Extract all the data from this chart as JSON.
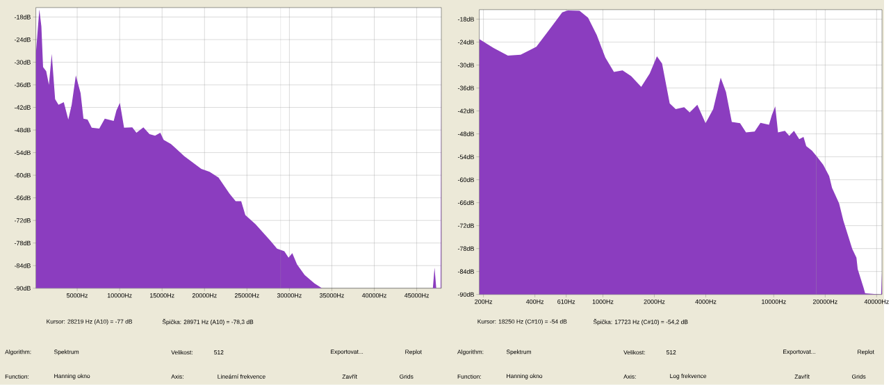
{
  "chart_data": [
    {
      "type": "area",
      "color": "#8b3dbf",
      "grid": true,
      "x": [
        130,
        130,
        540,
        780,
        980,
        1350,
        1670,
        2000,
        2400,
        2800,
        3420,
        3950,
        4350,
        4840,
        5400,
        5740,
        6220,
        6710,
        7600,
        8250,
        9300,
        9620,
        10030,
        10520,
        11490,
        11980,
        12800,
        13520,
        14170,
        14790,
        15190,
        16050,
        17020,
        17590,
        19620,
        20600,
        21650,
        22950,
        23670,
        24320,
        24810,
        26000,
        27730,
        28540,
        29400,
        29900,
        30340,
        30900,
        31800,
        32950,
        33840,
        46900,
        47100,
        47300,
        47800,
        47870,
        47870
      ],
      "values": [
        -90,
        -27.8,
        -16,
        -20.5,
        -31.3,
        -32.4,
        -36,
        -27.8,
        -39.8,
        -41.3,
        -40.6,
        -45.2,
        -41.3,
        -33.5,
        -38.2,
        -45,
        -45.2,
        -47.4,
        -47.6,
        -45,
        -45.6,
        -42.8,
        -40.8,
        -47.4,
        -47.3,
        -48.7,
        -47.3,
        -49.1,
        -49.5,
        -48.7,
        -50.6,
        -51.7,
        -53.7,
        -54.9,
        -58.3,
        -59.1,
        -60.6,
        -64.9,
        -66.9,
        -66.9,
        -70.6,
        -73,
        -77.3,
        -79.5,
        -80.2,
        -81.9,
        -80.7,
        -83.7,
        -86.5,
        -88.7,
        -90,
        -90,
        -84.5,
        -90,
        -90,
        -27.8,
        -90
      ],
      "xlim": [
        130,
        47900
      ],
      "ylim": [
        -90,
        -15.5
      ],
      "xticks": [
        {
          "value": 5000,
          "label": "5000Hz"
        },
        {
          "value": 10000,
          "label": "10000Hz"
        },
        {
          "value": 15000,
          "label": "15000Hz"
        },
        {
          "value": 20000,
          "label": "20000Hz"
        },
        {
          "value": 25000,
          "label": "25000Hz"
        },
        {
          "value": 30000,
          "label": "30000Hz"
        },
        {
          "value": 35000,
          "label": "35000Hz"
        },
        {
          "value": 40000,
          "label": "40000Hz"
        },
        {
          "value": 45000,
          "label": "45000Hz"
        }
      ],
      "yticks": [
        {
          "value": -18,
          "label": "-18dB"
        },
        {
          "value": -24,
          "label": "-24dB"
        },
        {
          "value": -30,
          "label": "-30dB"
        },
        {
          "value": -36,
          "label": "-36dB"
        },
        {
          "value": -42,
          "label": "-42dB"
        },
        {
          "value": -48,
          "label": "-48dB"
        },
        {
          "value": -54,
          "label": "-54dB"
        },
        {
          "value": -60,
          "label": "-60dB"
        },
        {
          "value": -66,
          "label": "-66dB"
        },
        {
          "value": -72,
          "label": "-72dB"
        },
        {
          "value": -78,
          "label": "-78dB"
        },
        {
          "value": -84,
          "label": "-84dB"
        },
        {
          "value": -90,
          "label": "-90dB"
        }
      ],
      "ref_lines": [
        {
          "axis": "x",
          "value": 28971,
          "color": "#a0a0a0"
        }
      ],
      "annotations": [
        "Kursor: 28219 Hz (A10) = -77 dB",
        "Špička: 28971 Hz (A10) = -78,3 dB",
        "Algorithm:",
        "Spektrum",
        "Velikost:",
        "512",
        "Exportovat...",
        "Replot",
        "Function:",
        "Hanning okno",
        "Axis:",
        "Lineární frekvence",
        "Zavřít",
        "Grids"
      ]
    },
    {
      "type": "area",
      "color": "#8b3dbf",
      "grid": true,
      "log": "x",
      "x": [
        189,
        189,
        229,
        278,
        330,
        408,
        494,
        578,
        623,
        730,
        819,
        920,
        1033,
        1160,
        1303,
        1463,
        1676,
        1880,
        2071,
        2220,
        2460,
        2667,
        2990,
        3220,
        3570,
        3990,
        4420,
        4890,
        5250,
        5680,
        6350,
        6880,
        7730,
        8360,
        9380,
        9740,
        10200,
        10590,
        11620,
        12320,
        13130,
        14100,
        14930,
        15490,
        16730,
        17780,
        19490,
        21090,
        21930,
        24130,
        25550,
        28800,
        30470,
        31000,
        33560,
        34250,
        42500,
        43000,
        43000
      ],
      "values": [
        -90,
        -23.2,
        -25.5,
        -27.5,
        -27.3,
        -25.2,
        -20.3,
        -16.2,
        -15.7,
        -15.8,
        -17.6,
        -22.1,
        -28,
        -31.8,
        -31.4,
        -32.9,
        -35.7,
        -32.2,
        -27.7,
        -29.6,
        -40,
        -41.5,
        -41,
        -42.4,
        -40.4,
        -45.2,
        -41.5,
        -33.3,
        -37,
        -44.9,
        -45.2,
        -47.6,
        -47.4,
        -45.1,
        -45.6,
        -43.1,
        -40.8,
        -47.6,
        -47.2,
        -48.5,
        -47.2,
        -49.4,
        -48.8,
        -51.2,
        -52.4,
        -53.8,
        -56.1,
        -59,
        -62.1,
        -66.2,
        -70.7,
        -78.1,
        -80.4,
        -83.4,
        -88.3,
        -89.7,
        -90,
        -84,
        -90
      ],
      "xlim": [
        189,
        43000
      ],
      "ylim": [
        -90,
        -15.5
      ],
      "xticks": [
        {
          "value": 200,
          "label": "200Hz"
        },
        {
          "value": 400,
          "label": "400Hz"
        },
        {
          "value": 610,
          "label": "610Hz"
        },
        {
          "value": 1000,
          "label": "1000Hz"
        },
        {
          "value": 2000,
          "label": "2000Hz"
        },
        {
          "value": 4000,
          "label": "4000Hz"
        },
        {
          "value": 10000,
          "label": "10000Hz"
        },
        {
          "value": 20000,
          "label": "20000Hz"
        },
        {
          "value": 40000,
          "label": "40000Hz"
        }
      ],
      "yticks": [
        {
          "value": -18,
          "label": "-18dB"
        },
        {
          "value": -24,
          "label": "-24dB"
        },
        {
          "value": -30,
          "label": "-30dB"
        },
        {
          "value": -36,
          "label": "-36dB"
        },
        {
          "value": -42,
          "label": "-42dB"
        },
        {
          "value": -48,
          "label": "-48dB"
        },
        {
          "value": -54,
          "label": "-54dB"
        },
        {
          "value": -60,
          "label": "-60dB"
        },
        {
          "value": -66,
          "label": "-66dB"
        },
        {
          "value": -72,
          "label": "-72dB"
        },
        {
          "value": -78,
          "label": "-78dB"
        },
        {
          "value": -84,
          "label": "-84dB"
        },
        {
          "value": -90,
          "label": "-90dB"
        }
      ],
      "ref_lines": [
        {
          "axis": "x",
          "value": 17723,
          "color": "#a0a0a0"
        }
      ],
      "annotations": [
        "Kursor: 18250 Hz (C#10) = -54 dB",
        "Špička: 17723 Hz (C#10) = -54,2 dB",
        "Algorithm:",
        "Spektrum",
        "Velikost:",
        "512",
        "Exportovat...",
        "Replot",
        "Function:",
        "Hanning okno",
        "Axis:",
        "Log frekvence",
        "Zavřít",
        "Grids"
      ]
    }
  ]
}
